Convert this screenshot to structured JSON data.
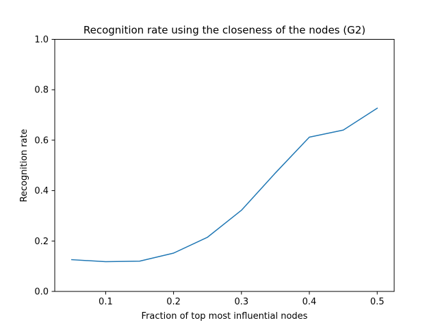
{
  "chart_data": {
    "type": "line",
    "title": "Recognition rate using the closeness of the nodes (G2)",
    "xlabel": "Fraction of top most influential nodes",
    "ylabel": "Recognition rate",
    "xlim": [
      0.025,
      0.525
    ],
    "ylim": [
      0.0,
      1.0
    ],
    "xticks": [
      "0.1",
      "0.2",
      "0.3",
      "0.4",
      "0.5"
    ],
    "xtick_values": [
      0.1,
      0.2,
      0.3,
      0.4,
      0.5
    ],
    "yticks": [
      "0.0",
      "0.2",
      "0.4",
      "0.6",
      "0.8",
      "1.0"
    ],
    "ytick_values": [
      0.0,
      0.2,
      0.4,
      0.6,
      0.8,
      1.0
    ],
    "grid": false,
    "line_color": "#1f77b4",
    "series": [
      {
        "x": [
          0.05,
          0.1,
          0.15,
          0.2,
          0.25,
          0.3,
          0.35,
          0.4,
          0.45,
          0.5
        ],
        "values": [
          0.126,
          0.118,
          0.12,
          0.152,
          0.215,
          0.322,
          0.47,
          0.612,
          0.64,
          0.727
        ]
      }
    ]
  }
}
